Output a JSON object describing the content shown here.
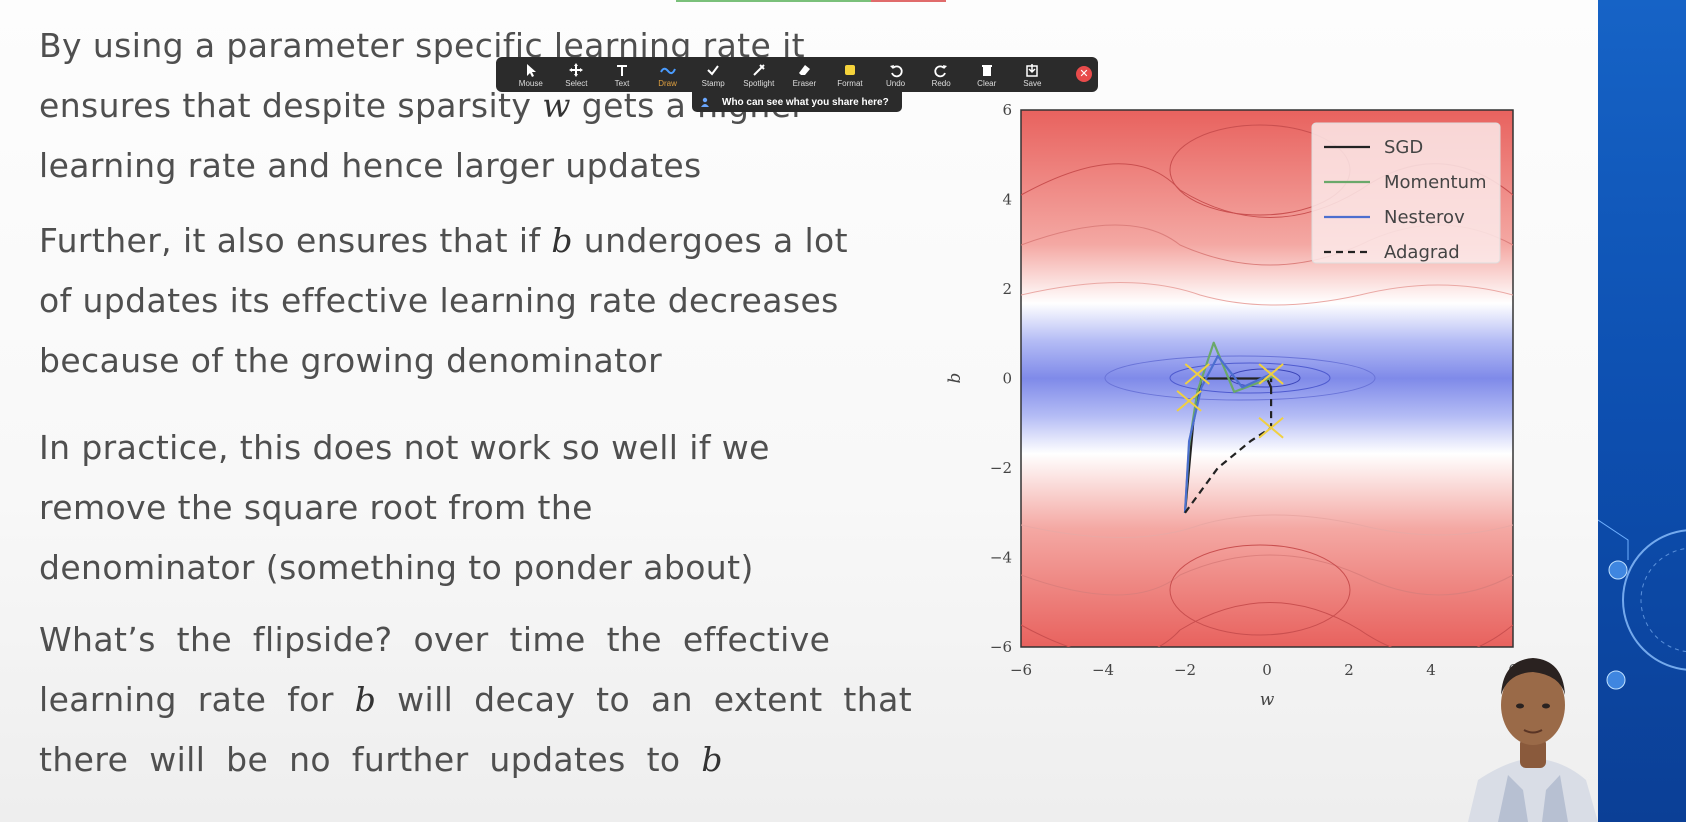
{
  "slide": {
    "paragraphs": [
      {
        "lines": [
          "By using a parameter specific learning rate it",
          "ensures that despite sparsity {m} gets a higher",
          "learning rate and hence larger updates"
        ],
        "math": [
          "w"
        ]
      },
      {
        "lines": [
          "Further, it also ensures that if {m} undergoes a lot",
          "of updates its effective learning rate decreases",
          "because of the growing denominator"
        ],
        "math": [
          "b"
        ]
      },
      {
        "lines": [
          "In practice, this does not work so well if we",
          "remove the square root from the",
          "denominator (something to ponder about)"
        ],
        "math": []
      },
      {
        "lines": [
          "What’s the flipside? over time the effective",
          "learning rate for {m} will decay to an extent that",
          "there will be no further updates to {m}"
        ],
        "math": [
          "b",
          "b"
        ]
      }
    ]
  },
  "toolbar": {
    "buttons": [
      {
        "label": "Mouse",
        "icon": "mouse-pointer-icon"
      },
      {
        "label": "Select",
        "icon": "move-icon"
      },
      {
        "label": "Text",
        "icon": "text-icon"
      },
      {
        "label": "Draw",
        "icon": "draw-icon",
        "active": true
      },
      {
        "label": "Stamp",
        "icon": "stamp-icon"
      },
      {
        "label": "Spotlight",
        "icon": "spotlight-icon"
      },
      {
        "label": "Eraser",
        "icon": "eraser-icon"
      },
      {
        "label": "Format",
        "icon": "format-icon"
      },
      {
        "label": "Undo",
        "icon": "undo-icon"
      },
      {
        "label": "Redo",
        "icon": "redo-icon"
      },
      {
        "label": "Clear",
        "icon": "trash-icon"
      },
      {
        "label": "Save",
        "icon": "save-icon"
      }
    ],
    "share_hint": "Who can see what you share here?",
    "colors": {
      "bg": "#2b2b2b",
      "active": "#e0a040",
      "close": "#e84b4b"
    }
  },
  "chart_data": {
    "type": "contour",
    "xlabel": "w",
    "ylabel": "b",
    "xlim": [
      -6,
      6
    ],
    "ylim": [
      -6,
      6
    ],
    "xticks": [
      "−6",
      "−4",
      "−2",
      "0",
      "2",
      "4",
      "6"
    ],
    "yticks": [
      "6",
      "4",
      "2",
      "0",
      "−2",
      "−4",
      "−6"
    ],
    "legend": {
      "position": "top-right",
      "entries": [
        "SGD",
        "Momentum",
        "Nesterov",
        "Adagrad"
      ]
    },
    "series": [
      {
        "name": "SGD",
        "color": "#222222",
        "style": "solid",
        "points": [
          [
            -2,
            -3
          ],
          [
            -1.8,
            -1
          ],
          [
            -1.6,
            0
          ],
          [
            0,
            0
          ],
          [
            0.1,
            -0.2
          ]
        ]
      },
      {
        "name": "Momentum",
        "color": "#6aa86a",
        "style": "solid",
        "points": [
          [
            -2,
            -3
          ],
          [
            -1.9,
            -1.5
          ],
          [
            -1.7,
            -0.3
          ],
          [
            -1.3,
            0.8
          ],
          [
            -0.8,
            -0.3
          ],
          [
            0.2,
            0.05
          ]
        ]
      },
      {
        "name": "Nesterov",
        "color": "#4c6fcf",
        "style": "solid",
        "points": [
          [
            -2,
            -3
          ],
          [
            -1.9,
            -1.4
          ],
          [
            -1.6,
            -0.2
          ],
          [
            -1.2,
            0.5
          ],
          [
            -0.6,
            -0.2
          ],
          [
            0.1,
            0.1
          ]
        ]
      },
      {
        "name": "Adagrad",
        "color": "#222222",
        "style": "dashed",
        "points": [
          [
            -2,
            -3
          ],
          [
            -1.2,
            -2
          ],
          [
            -0.4,
            -1.4
          ],
          [
            0.1,
            -1.1
          ],
          [
            0.1,
            0
          ]
        ]
      }
    ],
    "annotation_marks": [
      [
        -1.7,
        0.1
      ],
      [
        -1.9,
        -0.5
      ],
      [
        0.1,
        0.1
      ],
      [
        0.1,
        -1.1
      ]
    ],
    "colors": {
      "low": "#6f7be8",
      "high": "#e85858",
      "mid": "#ffffff",
      "annotation": "#f0d040"
    }
  }
}
